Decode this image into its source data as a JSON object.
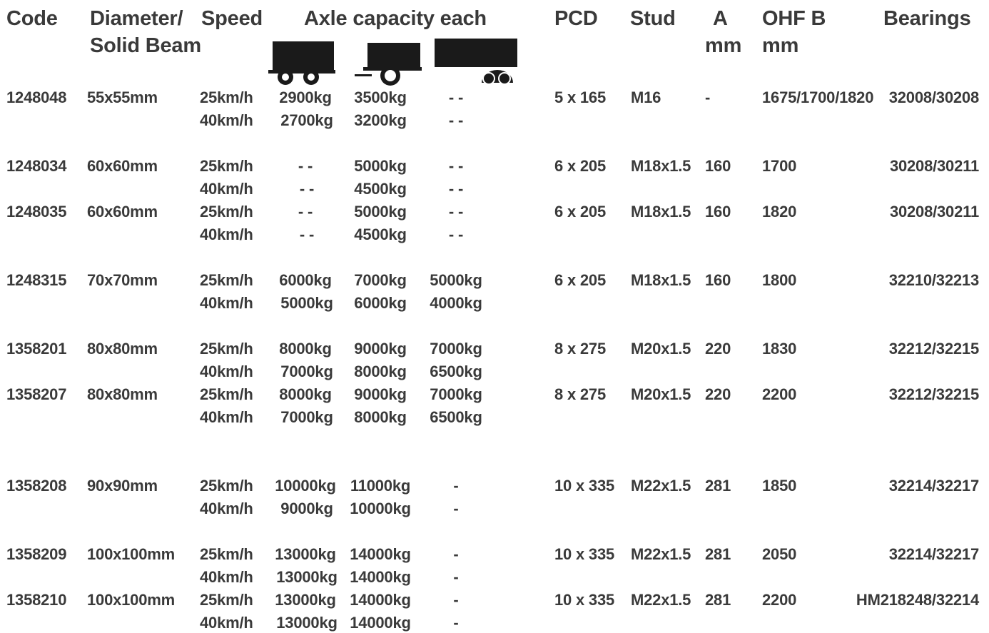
{
  "headers": {
    "code": "Code",
    "diameter_line1": "Diameter/",
    "diameter_line2": "Solid Beam",
    "speed": "Speed",
    "axle_capacity": "Axle capacity each",
    "pcd": "PCD",
    "stud": "Stud",
    "a_line1": "A",
    "a_line2": "mm",
    "ohf_line1": "OHF B",
    "ohf_line2": "mm",
    "bearings": "Bearings"
  },
  "trailer_icons": [
    {
      "name": "twin-axle-trailer-icon"
    },
    {
      "name": "single-axle-trailer-icon"
    },
    {
      "name": "tandem-axle-trailer-icon"
    }
  ],
  "text_color": "#3a3a3a",
  "icon_color": "#1a1a1a",
  "rows": [
    {
      "code": "1248048",
      "diameter": "55x55mm",
      "speed1": "25km/h",
      "speed2": "40km/h",
      "cap1a": "2900kg",
      "cap2a": "3500kg",
      "cap3a": "- -",
      "cap1b": "2700kg",
      "cap2b": "3200kg",
      "cap3b": "- -",
      "pcd": "5 x 165",
      "stud": "M16",
      "a": "-",
      "ohf": "1675/1700/1820",
      "bearings": "32008/30208"
    },
    {
      "code": "1248034",
      "diameter": "60x60mm",
      "speed1": "25km/h",
      "speed2": "40km/h",
      "cap1a": "- -",
      "cap2a": "5000kg",
      "cap3a": "- -",
      "cap1b": "- -",
      "cap2b": "4500kg",
      "cap3b": "- -",
      "pcd": "6 x 205",
      "stud": "M18x1.5",
      "a": "160",
      "ohf": "1700",
      "bearings": "30208/30211"
    },
    {
      "code": "1248035",
      "diameter": "60x60mm",
      "speed1": "25km/h",
      "speed2": "40km/h",
      "cap1a": "- -",
      "cap2a": "5000kg",
      "cap3a": "- -",
      "cap1b": "- -",
      "cap2b": "4500kg",
      "cap3b": "- -",
      "pcd": "6 x 205",
      "stud": "M18x1.5",
      "a": "160",
      "ohf": "1820",
      "bearings": "30208/30211"
    },
    {
      "code": "1248315",
      "diameter": "70x70mm",
      "speed1": "25km/h",
      "speed2": "40km/h",
      "cap1a": "6000kg",
      "cap2a": "7000kg",
      "cap3a": "5000kg",
      "cap1b": "5000kg",
      "cap2b": "6000kg",
      "cap3b": "4000kg",
      "pcd": "6 x 205",
      "stud": "M18x1.5",
      "a": "160",
      "ohf": "1800",
      "bearings": "32210/32213"
    },
    {
      "code": "1358201",
      "diameter": "80x80mm",
      "speed1": "25km/h",
      "speed2": "40km/h",
      "cap1a": "8000kg",
      "cap2a": "9000kg",
      "cap3a": "7000kg",
      "cap1b": "7000kg",
      "cap2b": "8000kg",
      "cap3b": "6500kg",
      "pcd": "8 x 275",
      "stud": "M20x1.5",
      "a": "220",
      "ohf": "1830",
      "bearings": "32212/32215"
    },
    {
      "code": "1358207",
      "diameter": "80x80mm",
      "speed1": "25km/h",
      "speed2": "40km/h",
      "cap1a": "8000kg",
      "cap2a": "9000kg",
      "cap3a": "7000kg",
      "cap1b": "7000kg",
      "cap2b": "8000kg",
      "cap3b": "6500kg",
      "pcd": "8 x 275",
      "stud": "M20x1.5",
      "a": "220",
      "ohf": "2200",
      "bearings": "32212/32215"
    },
    {
      "code": "1358208",
      "diameter": "90x90mm",
      "speed1": "25km/h",
      "speed2": "40km/h",
      "cap1a": "10000kg",
      "cap2a": "11000kg",
      "cap3a": "-",
      "cap1b": "9000kg",
      "cap2b": "10000kg",
      "cap3b": "-",
      "pcd": "10 x 335",
      "stud": "M22x1.5",
      "a": "281",
      "ohf": "1850",
      "bearings": "32214/32217"
    },
    {
      "code": "1358209",
      "diameter": "100x100mm",
      "speed1": "25km/h",
      "speed2": "40km/h",
      "cap1a": "13000kg",
      "cap2a": "14000kg",
      "cap3a": "-",
      "cap1b": "13000kg",
      "cap2b": "14000kg",
      "cap3b": "-",
      "pcd": "10 x 335",
      "stud": "M22x1.5",
      "a": "281",
      "ohf": "2050",
      "bearings": "32214/32217"
    },
    {
      "code": "1358210",
      "diameter": "100x100mm",
      "speed1": "25km/h",
      "speed2": "40km/h",
      "cap1a": "13000kg",
      "cap2a": "14000kg",
      "cap3a": "-",
      "cap1b": "13000kg",
      "cap2b": "14000kg",
      "cap3b": "-",
      "pcd": "10 x 335",
      "stud": "M22x1.5",
      "a": "281",
      "ohf": "2200",
      "bearings": "HM218248/32214"
    }
  ]
}
